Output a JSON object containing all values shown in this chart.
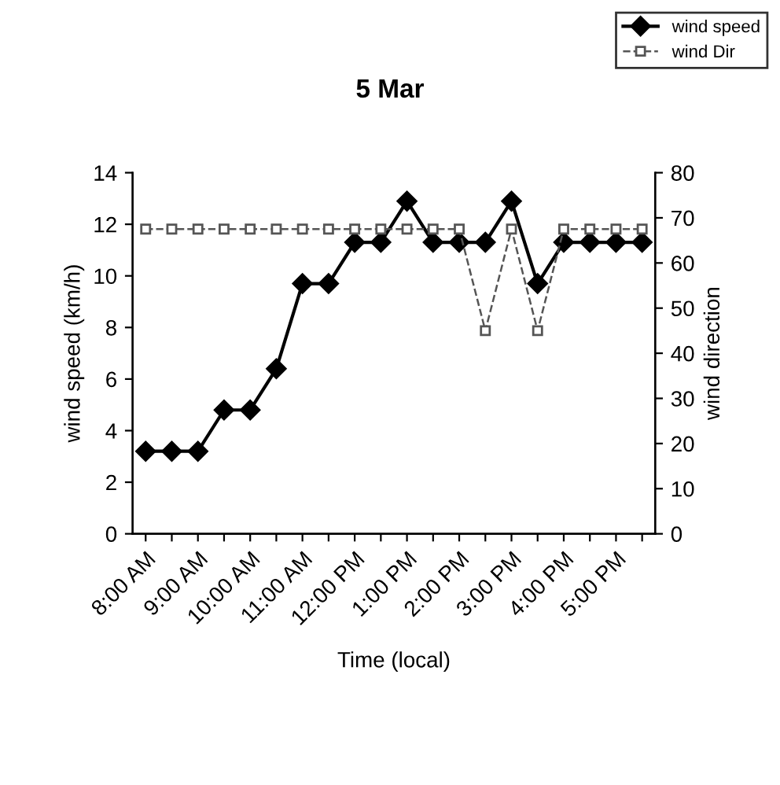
{
  "chart_data": {
    "type": "line",
    "title": "5 Mar",
    "xlabel": "Time (local)",
    "ylabel": "wind speed (km/h)",
    "y2label": "wind direction",
    "categories": [
      "8:00 AM",
      null,
      "9:00 AM",
      null,
      "10:00 AM",
      null,
      "11:00 AM",
      null,
      "12:00 PM",
      null,
      "1:00 PM",
      null,
      "2:00 PM",
      null,
      "3:00 PM",
      null,
      "4:00 PM",
      null,
      "5:00 PM",
      null
    ],
    "series": [
      {
        "name": "wind speed",
        "color": "#000000",
        "marker": "diamond",
        "line_style": "solid",
        "values": [
          3.2,
          3.2,
          3.2,
          4.8,
          4.8,
          6.4,
          9.7,
          9.7,
          11.3,
          11.3,
          12.9,
          11.3,
          11.3,
          11.3,
          12.9,
          9.7,
          11.3,
          11.3,
          11.3,
          11.3
        ]
      },
      {
        "name": "wind Dir",
        "color": "#555555",
        "marker": "square",
        "line_style": "dashed",
        "axis": "y2",
        "values": [
          67.5,
          67.5,
          67.5,
          67.5,
          67.5,
          67.5,
          67.5,
          67.5,
          67.5,
          67.5,
          67.5,
          67.5,
          67.5,
          45,
          67.5,
          45,
          67.5,
          67.5,
          67.5,
          67.5
        ]
      }
    ],
    "ylim": [
      0,
      14
    ],
    "yticks": [
      0,
      2,
      4,
      6,
      8,
      10,
      12,
      14
    ],
    "y2lim": [
      0,
      80
    ],
    "y2ticks": [
      0,
      10,
      20,
      30,
      40,
      50,
      60,
      70,
      80
    ],
    "grid": false,
    "legend": "top right"
  }
}
